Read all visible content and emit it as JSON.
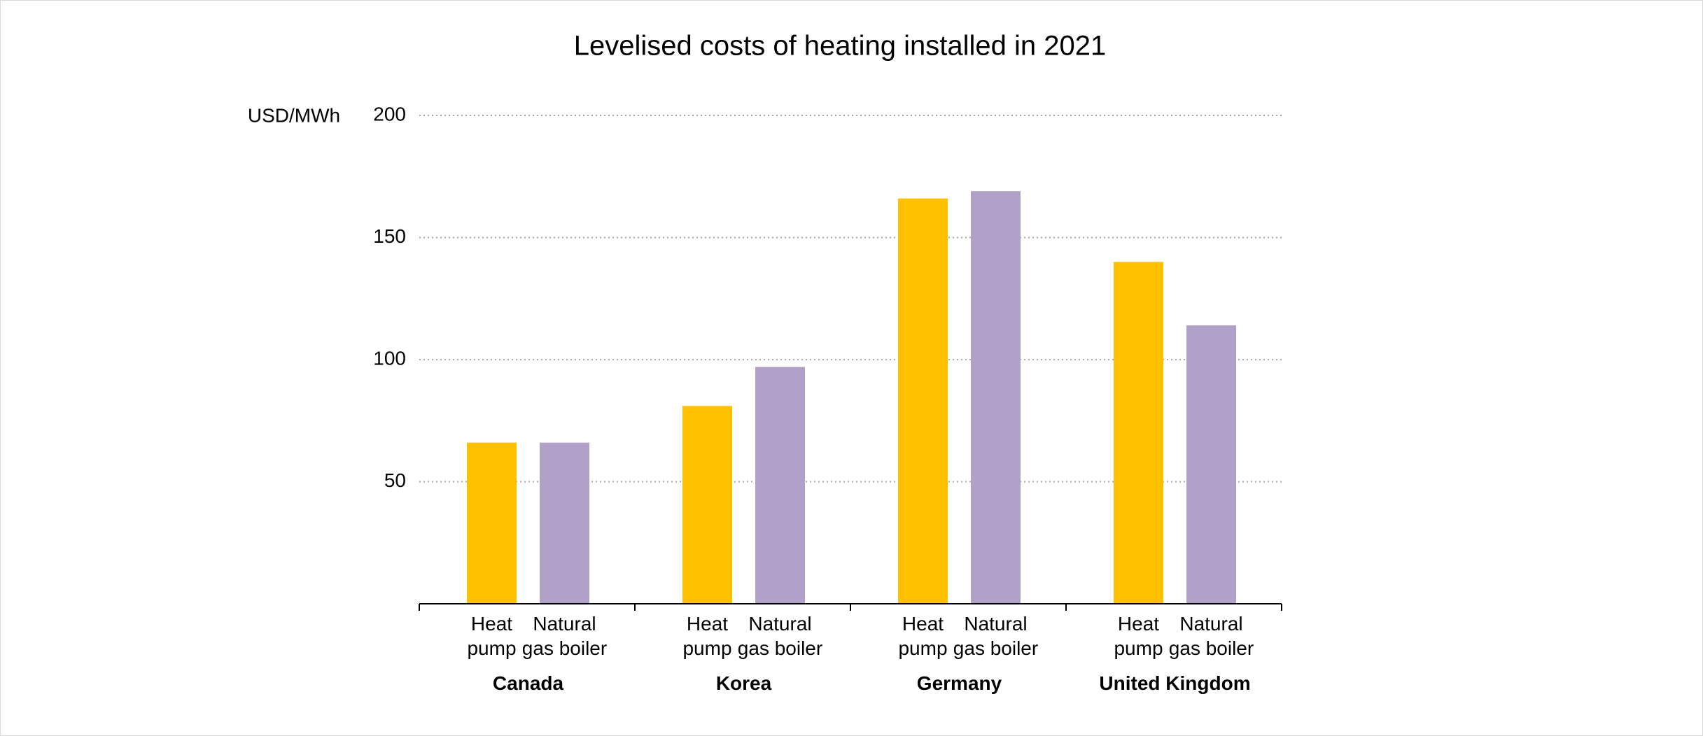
{
  "chart_data": {
    "type": "bar",
    "title": "Levelised costs of heating installed in 2021",
    "y_label": "USD/MWh",
    "categories": [
      "Canada",
      "Korea",
      "Germany",
      "United Kingdom"
    ],
    "series": [
      {
        "name": "Heat pump",
        "color": "#ffc000",
        "values": [
          66,
          81,
          166,
          140
        ]
      },
      {
        "name": "Natural gas boiler",
        "color": "#b1a0c7",
        "values": [
          66,
          97,
          169,
          114
        ]
      }
    ],
    "ylim": [
      0,
      200
    ],
    "yticks": [
      50,
      100,
      150,
      200
    ],
    "grid": true
  }
}
